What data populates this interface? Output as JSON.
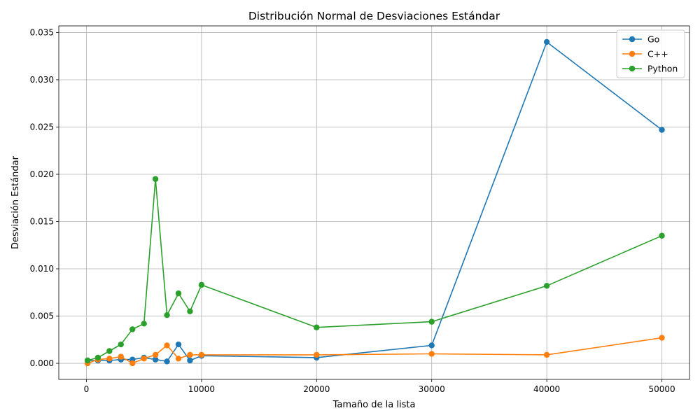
{
  "chart_data": {
    "type": "line",
    "title": "Distribución Normal de Desviaciones Estándar",
    "xlabel": "Tamaño de la lista",
    "ylabel": "Desviación Estándar",
    "xlim": [
      -2400,
      52400
    ],
    "ylim": [
      -0.0017,
      0.0357
    ],
    "x_ticks": [
      0,
      10000,
      20000,
      30000,
      40000,
      50000
    ],
    "x_tick_labels": [
      "0",
      "10000",
      "20000",
      "30000",
      "40000",
      "50000"
    ],
    "y_ticks": [
      0.0,
      0.005,
      0.01,
      0.015,
      0.02,
      0.025,
      0.03,
      0.035
    ],
    "y_tick_labels": [
      "0.000",
      "0.005",
      "0.010",
      "0.015",
      "0.020",
      "0.025",
      "0.030",
      "0.035"
    ],
    "grid": true,
    "legend_position": "top-right",
    "x": [
      100,
      1000,
      2000,
      3000,
      4000,
      5000,
      6000,
      7000,
      8000,
      9000,
      10000,
      20000,
      30000,
      40000,
      50000
    ],
    "series": [
      {
        "name": "Go",
        "color": "#1f77b4",
        "values": [
          0.0003,
          0.0003,
          0.0003,
          0.0004,
          0.0004,
          0.0006,
          0.0004,
          0.0002,
          0.002,
          0.0003,
          0.0008,
          0.0006,
          0.0019,
          0.034,
          0.0247
        ]
      },
      {
        "name": "C++",
        "color": "#ff7f0e",
        "values": [
          0.0,
          0.0004,
          0.0005,
          0.0007,
          0.0,
          0.0005,
          0.0009,
          0.0019,
          0.0005,
          0.0009,
          0.0009,
          0.0009,
          0.001,
          0.0009,
          0.0027
        ]
      },
      {
        "name": "Python",
        "color": "#2ca02c",
        "values": [
          0.0003,
          0.0006,
          0.0013,
          0.002,
          0.0036,
          0.0042,
          0.0195,
          0.0051,
          0.0074,
          0.0055,
          0.0083,
          0.0038,
          0.0044,
          0.0082,
          0.0135
        ]
      }
    ]
  }
}
